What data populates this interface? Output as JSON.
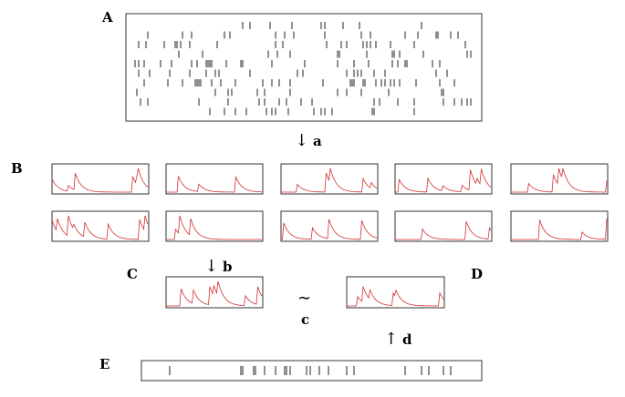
{
  "panels": {
    "a": "A",
    "b": "B",
    "c": "C",
    "d": "D",
    "e": "E"
  },
  "steps": [
    {
      "symbol": "↓",
      "label": "a"
    },
    {
      "symbol": "↓",
      "label": "b"
    },
    {
      "symbol": "∼",
      "label": "c"
    },
    {
      "symbol": "↑",
      "label": "d"
    }
  ]
}
